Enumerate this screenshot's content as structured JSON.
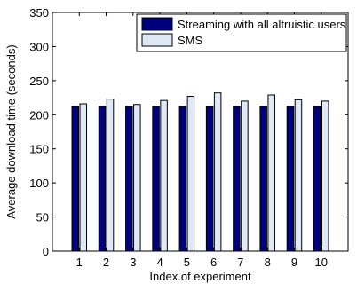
{
  "chart_data": {
    "type": "bar",
    "title": "",
    "xlabel": "Index.of experiment",
    "ylabel": "Average download time (seconds)",
    "ylim": [
      0,
      350
    ],
    "yticks": [
      0,
      50,
      100,
      150,
      200,
      250,
      300,
      350
    ],
    "categories": [
      "1",
      "2",
      "3",
      "4",
      "5",
      "6",
      "7",
      "8",
      "9",
      "10"
    ],
    "series": [
      {
        "name": "Streaming with all altruistic users",
        "color": "#00007f",
        "values": [
          212,
          212,
          212,
          212,
          212,
          212,
          212,
          212,
          212,
          212
        ]
      },
      {
        "name": "SMS",
        "color": "#dfe9f5",
        "values": [
          216,
          223,
          215,
          221,
          227,
          232,
          220,
          229,
          222,
          220
        ]
      }
    ],
    "legend_position": "top-right",
    "grid": false
  }
}
